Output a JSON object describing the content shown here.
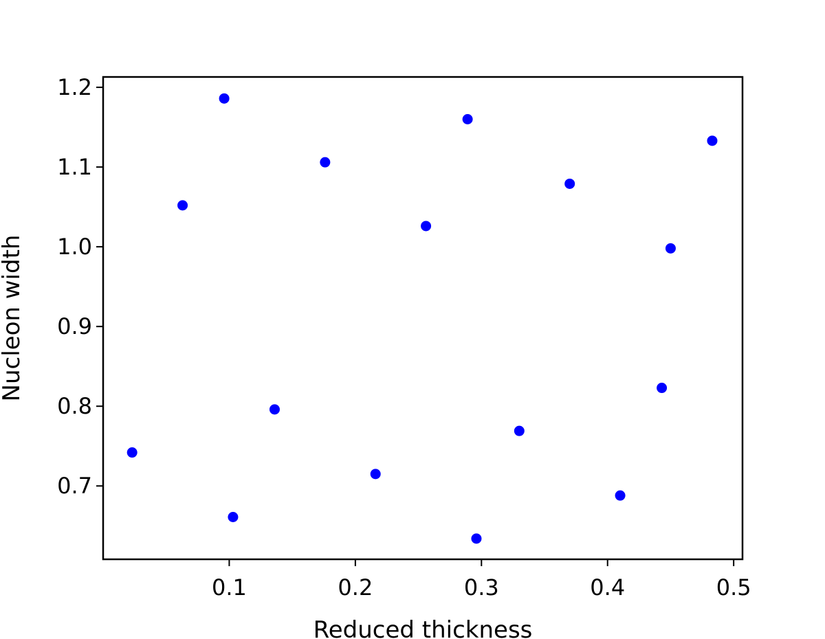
{
  "chart_data": {
    "type": "scatter",
    "title": "",
    "xlabel": "Reduced thickness",
    "ylabel": "Nucleon width",
    "xlim": [
      0.0,
      0.507
    ],
    "ylim": [
      0.608,
      1.213
    ],
    "xticks": [
      0.1,
      0.2,
      0.3,
      0.4,
      0.5
    ],
    "yticks": [
      0.7,
      0.8,
      0.9,
      1.0,
      1.1,
      1.2
    ],
    "xtick_labels": [
      "0.1",
      "0.2",
      "0.3",
      "0.4",
      "0.5"
    ],
    "ytick_labels": [
      "0.7",
      "0.8",
      "0.9",
      "1.0",
      "1.1",
      "1.2"
    ],
    "grid": false,
    "marker_color": "#0000ff",
    "series": [
      {
        "points": [
          {
            "x": 0.023,
            "y": 0.742
          },
          {
            "x": 0.063,
            "y": 1.052
          },
          {
            "x": 0.096,
            "y": 1.186
          },
          {
            "x": 0.103,
            "y": 0.661
          },
          {
            "x": 0.136,
            "y": 0.796
          },
          {
            "x": 0.176,
            "y": 1.106
          },
          {
            "x": 0.216,
            "y": 0.715
          },
          {
            "x": 0.256,
            "y": 1.026
          },
          {
            "x": 0.289,
            "y": 1.16
          },
          {
            "x": 0.296,
            "y": 0.634
          },
          {
            "x": 0.33,
            "y": 0.769
          },
          {
            "x": 0.37,
            "y": 1.079
          },
          {
            "x": 0.41,
            "y": 0.688
          },
          {
            "x": 0.443,
            "y": 0.823
          },
          {
            "x": 0.45,
            "y": 0.998
          },
          {
            "x": 0.483,
            "y": 1.133
          }
        ]
      }
    ]
  }
}
